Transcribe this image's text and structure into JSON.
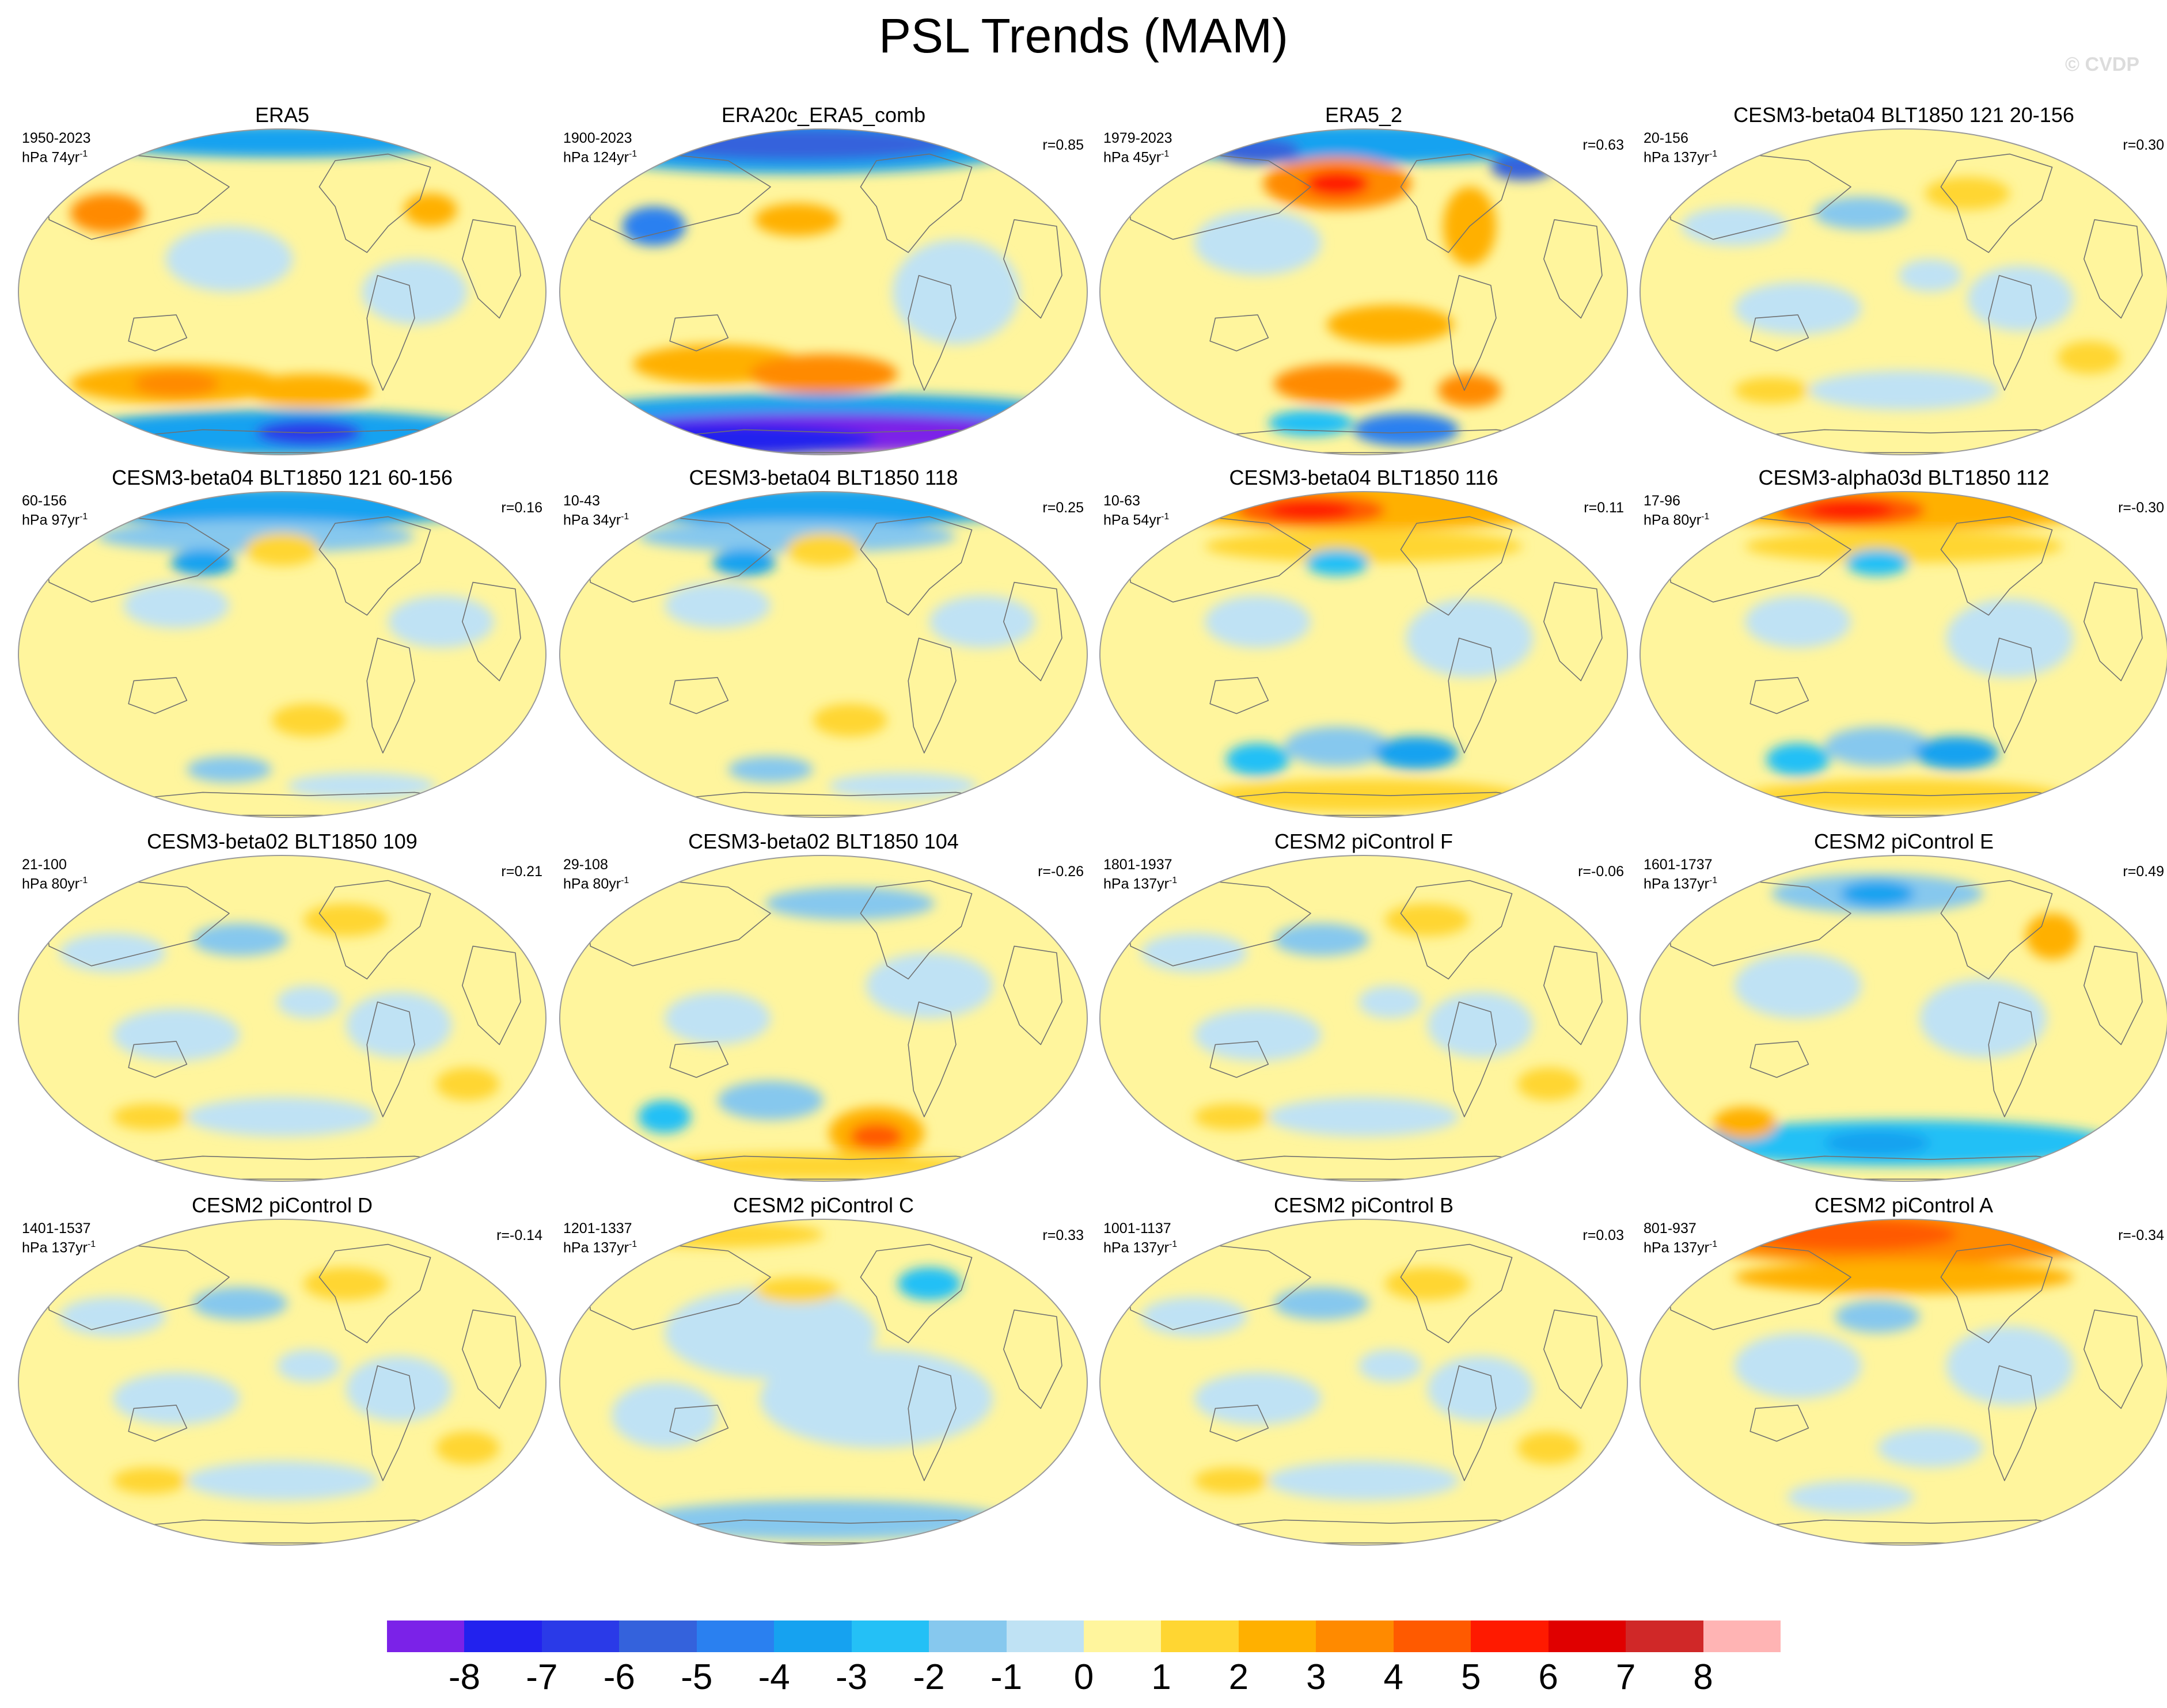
{
  "title": "PSL Trends (MAM)",
  "watermark": "© CVDP",
  "palette": {
    "ocean_base": "#fff59d",
    "land_base": "#fff59d",
    "coast": "#707070",
    "outline": "#9a9a9a"
  },
  "panels": [
    {
      "title": "ERA5",
      "period": "1950-2023",
      "units": "hPa 74yr",
      "corr": "",
      "dominant": "mixed_strong_south"
    },
    {
      "title": "ERA20c_ERA5_comb",
      "period": "1900-2023",
      "units": "hPa 124yr",
      "corr": "r=0.85",
      "dominant": "extreme_south"
    },
    {
      "title": "ERA5_2",
      "period": "1979-2023",
      "units": "hPa 45yr",
      "corr": "r=0.63",
      "dominant": "mixed_strong"
    },
    {
      "title": "CESM3-beta04 BLT1850 121 20-156",
      "period": "20-156",
      "units": "hPa 137yr",
      "corr": "r=0.30",
      "dominant": "mild"
    },
    {
      "title": "CESM3-beta04 BLT1850 121 60-156",
      "period": "60-156",
      "units": "hPa 97yr",
      "corr": "r=0.16",
      "dominant": "mild_north_blue"
    },
    {
      "title": "CESM3-beta04 BLT1850 118",
      "period": "10-43",
      "units": "hPa 34yr",
      "corr": "r=0.25",
      "dominant": "mild_north_blue"
    },
    {
      "title": "CESM3-beta04 BLT1850 116",
      "period": "10-63",
      "units": "hPa 54yr",
      "corr": "r=0.11",
      "dominant": "north_red"
    },
    {
      "title": "CESM3-alpha03d BLT1850 112",
      "period": "17-96",
      "units": "hPa 80yr",
      "corr": "r=-0.30",
      "dominant": "north_red"
    },
    {
      "title": "CESM3-beta02 BLT1850 109",
      "period": "21-100",
      "units": "hPa 80yr",
      "corr": "r=0.21",
      "dominant": "mild"
    },
    {
      "title": "CESM3-beta02 BLT1850 104",
      "period": "29-108",
      "units": "hPa 80yr",
      "corr": "r=-0.26",
      "dominant": "mild_south_orange"
    },
    {
      "title": "CESM2 piControl F",
      "period": "1801-1937",
      "units": "hPa 137yr",
      "corr": "r=-0.06",
      "dominant": "mild"
    },
    {
      "title": "CESM2 piControl E",
      "period": "1601-1737",
      "units": "hPa 137yr",
      "corr": "r=0.49",
      "dominant": "mild_south_blue"
    },
    {
      "title": "CESM2 piControl D",
      "period": "1401-1537",
      "units": "hPa 137yr",
      "corr": "r=-0.14",
      "dominant": "mild"
    },
    {
      "title": "CESM2 piControl C",
      "period": "1201-1337",
      "units": "hPa 137yr",
      "corr": "r=0.33",
      "dominant": "mild_blue"
    },
    {
      "title": "CESM2 piControl B",
      "period": "1001-1137",
      "units": "hPa 137yr",
      "corr": "r=0.03",
      "dominant": "mild"
    },
    {
      "title": "CESM2 piControl A",
      "period": "801-937",
      "units": "hPa 137yr",
      "corr": "r=-0.34",
      "dominant": "north_orange"
    }
  ],
  "colorbar": {
    "colors": [
      "#7b22e8",
      "#2222ee",
      "#2a3ae8",
      "#3462dc",
      "#2a80f0",
      "#16a2f0",
      "#24c0f6",
      "#86c8ee",
      "#bfe2f4",
      "#fff59d",
      "#ffd632",
      "#ffb000",
      "#ff8a00",
      "#ff5a00",
      "#ff1a00",
      "#e00000",
      "#d02828",
      "#ffb4b4"
    ],
    "labels": [
      "-8",
      "-7",
      "-6",
      "-5",
      "-4",
      "-3",
      "-2",
      "-1",
      "0",
      "1",
      "2",
      "3",
      "4",
      "5",
      "6",
      "7",
      "8"
    ]
  }
}
